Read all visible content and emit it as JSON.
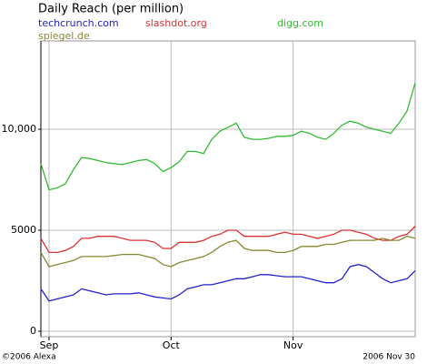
{
  "chart_data": {
    "type": "line",
    "title": "Daily Reach (per million)",
    "footer_left": "©2006 Alexa",
    "footer_right": "2006 Nov 30",
    "categories": [
      null,
      "Sep",
      null,
      null,
      null,
      null,
      null,
      null,
      null,
      null,
      null,
      null,
      null,
      null,
      null,
      null,
      "Oct",
      null,
      null,
      null,
      null,
      null,
      null,
      null,
      null,
      null,
      null,
      null,
      null,
      null,
      null,
      "Nov",
      null,
      null,
      null,
      null,
      null,
      null,
      null,
      null,
      null,
      null,
      null,
      null,
      null,
      null,
      null
    ],
    "series": [
      {
        "name": "techcrunch.com",
        "color": "#2222cc",
        "values": [
          2100,
          1500,
          1600,
          1700,
          1800,
          2100,
          2000,
          1900,
          1800,
          1850,
          1850,
          1850,
          1900,
          1800,
          1700,
          1650,
          1600,
          1800,
          2100,
          2200,
          2300,
          2300,
          2400,
          2500,
          2600,
          2600,
          2700,
          2800,
          2800,
          2750,
          2700,
          2700,
          2700,
          2600,
          2500,
          2400,
          2400,
          2600,
          3200,
          3300,
          3200,
          2900,
          2600,
          2400,
          2500,
          2600,
          3000
        ]
      },
      {
        "name": "slashdot.org",
        "color": "#dd3333",
        "values": [
          4600,
          3900,
          3900,
          4000,
          4200,
          4600,
          4600,
          4700,
          4700,
          4700,
          4600,
          4500,
          4500,
          4500,
          4400,
          4100,
          4100,
          4400,
          4400,
          4400,
          4500,
          4700,
          4800,
          5000,
          5000,
          4700,
          4700,
          4700,
          4700,
          4800,
          4900,
          4800,
          4800,
          4700,
          4600,
          4700,
          4800,
          5000,
          5000,
          4900,
          4800,
          4600,
          4500,
          4500,
          4700,
          4800,
          5200
        ]
      },
      {
        "name": "digg.com",
        "color": "#33bb33",
        "values": [
          8300,
          7000,
          7100,
          7300,
          8000,
          8600,
          8550,
          8450,
          8350,
          8300,
          8250,
          8350,
          8450,
          8500,
          8300,
          7900,
          8100,
          8400,
          8900,
          8900,
          8800,
          9500,
          9900,
          10100,
          10300,
          9600,
          9500,
          9500,
          9550,
          9650,
          9650,
          9700,
          9900,
          9800,
          9600,
          9500,
          9800,
          10200,
          10400,
          10300,
          10100,
          10000,
          9900,
          9800,
          10300,
          10900,
          12300
        ]
      },
      {
        "name": "spiegel.de",
        "color": "#888833",
        "values": [
          3900,
          3200,
          3300,
          3400,
          3500,
          3700,
          3700,
          3700,
          3700,
          3750,
          3800,
          3800,
          3800,
          3700,
          3600,
          3300,
          3200,
          3400,
          3500,
          3600,
          3700,
          3900,
          4200,
          4400,
          4500,
          4100,
          4000,
          4000,
          4000,
          3900,
          3900,
          4000,
          4200,
          4200,
          4200,
          4300,
          4300,
          4400,
          4500,
          4500,
          4500,
          4500,
          4600,
          4500,
          4500,
          4700,
          4600
        ]
      }
    ],
    "ylim": [
      -270,
      14370
    ],
    "yticks": [
      0,
      5000,
      {
        "value": 10000,
        "label": "10,000"
      }
    ],
    "grid": true
  }
}
